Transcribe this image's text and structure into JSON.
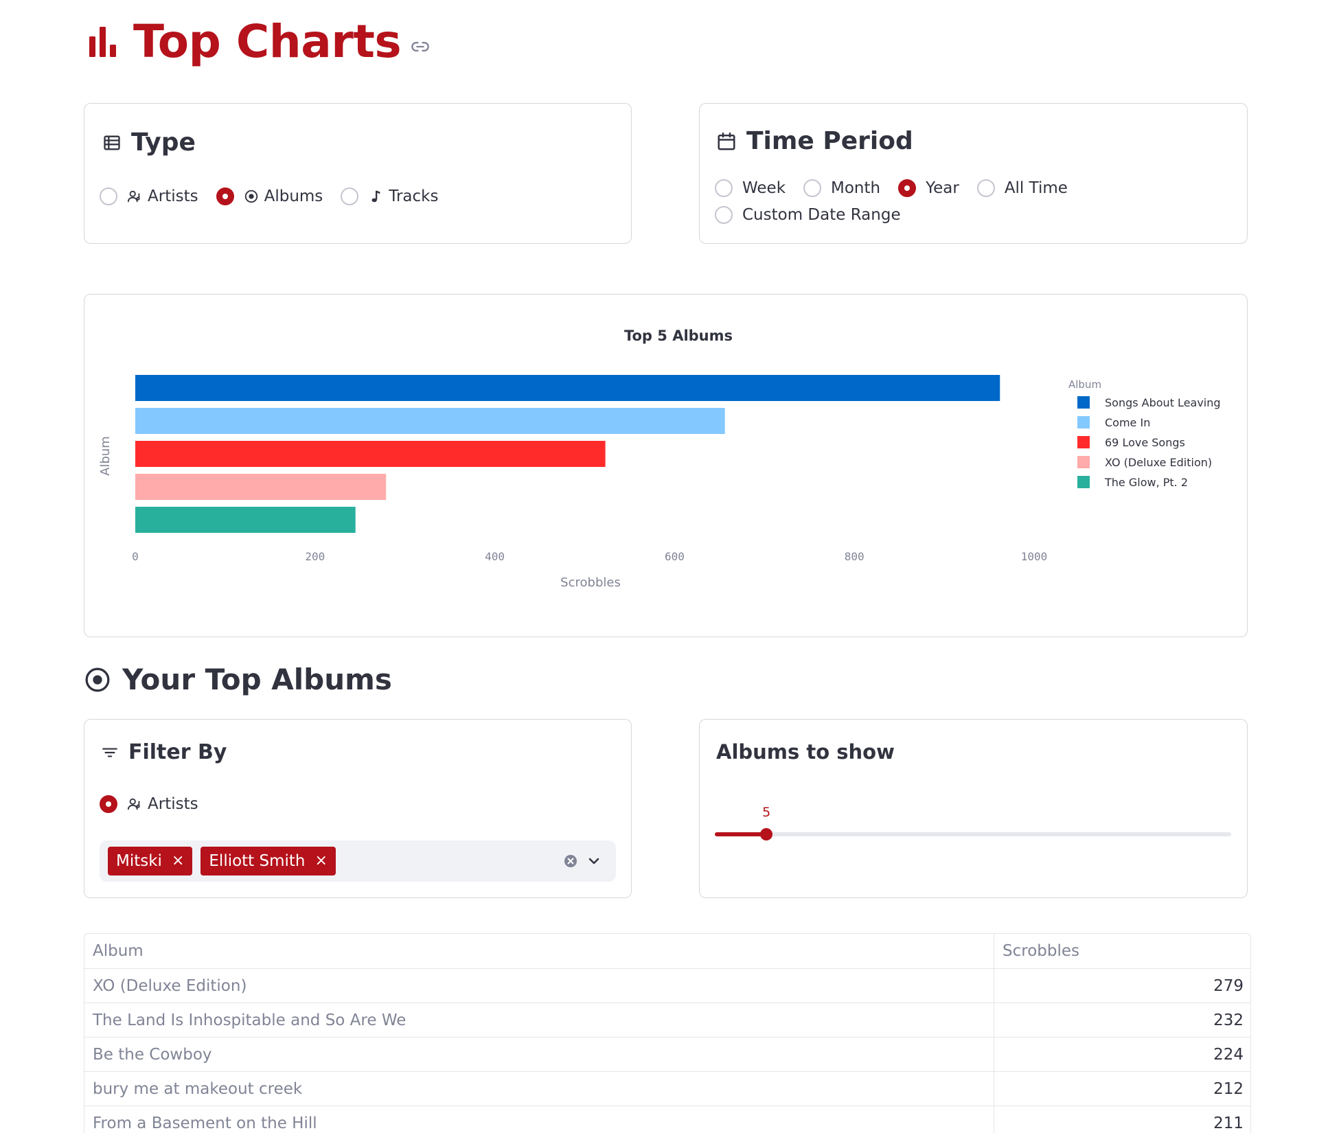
{
  "header": {
    "title": "Top Charts"
  },
  "type_card": {
    "heading": "Type",
    "options": [
      {
        "label": "Artists",
        "selected": false,
        "icon": "artist-icon"
      },
      {
        "label": "Albums",
        "selected": true,
        "icon": "album-icon"
      },
      {
        "label": "Tracks",
        "selected": false,
        "icon": "music-note-icon"
      }
    ]
  },
  "time_card": {
    "heading": "Time Period",
    "options": [
      {
        "label": "Week",
        "selected": false
      },
      {
        "label": "Month",
        "selected": false
      },
      {
        "label": "Year",
        "selected": true
      },
      {
        "label": "All Time",
        "selected": false
      },
      {
        "label": "Custom Date Range",
        "selected": false
      }
    ]
  },
  "chart_data": {
    "type": "bar",
    "orientation": "horizontal",
    "title": "Top 5 Albums",
    "xlabel": "Scrobbles",
    "ylabel": "Album",
    "legend_title": "Album",
    "legend_position": "right",
    "xlim": [
      0,
      1000
    ],
    "xticks": [
      "0",
      "200",
      "400",
      "600",
      "800",
      "1000"
    ],
    "grid": false,
    "series": [
      {
        "name": "Songs About Leaving",
        "value": 962,
        "color": "#0068c9"
      },
      {
        "name": "Come In",
        "value": 656,
        "color": "#83c9ff"
      },
      {
        "name": "69 Love Songs",
        "value": 523,
        "color": "#ff2b2b"
      },
      {
        "name": "XO (Deluxe Edition)",
        "value": 279,
        "color": "#ffabab"
      },
      {
        "name": "The Glow, Pt. 2",
        "value": 245,
        "color": "#29b09d"
      }
    ]
  },
  "section": {
    "heading": "Your Top Albums"
  },
  "filter_card": {
    "heading": "Filter By",
    "option_label": "Artists",
    "tags": [
      "Mitski",
      "Elliott Smith"
    ],
    "tag_remove": "×"
  },
  "slider_card": {
    "heading": "Albums to show",
    "value": 5,
    "value_label": "5",
    "fraction": 0.1
  },
  "table": {
    "columns": [
      "Album",
      "Scrobbles"
    ],
    "rows": [
      {
        "album": "XO (Deluxe Edition)",
        "scrobbles": "279"
      },
      {
        "album": "The Land Is Inhospitable and So Are We",
        "scrobbles": "232"
      },
      {
        "album": "Be the Cowboy",
        "scrobbles": "224"
      },
      {
        "album": "bury me at makeout creek",
        "scrobbles": "212"
      },
      {
        "album": "From a Basement on the Hill",
        "scrobbles": "211"
      }
    ]
  },
  "colors": {
    "accent": "#b5121b",
    "text": "#31333f",
    "muted": "#808495",
    "input_bg": "#f0f2f6"
  }
}
